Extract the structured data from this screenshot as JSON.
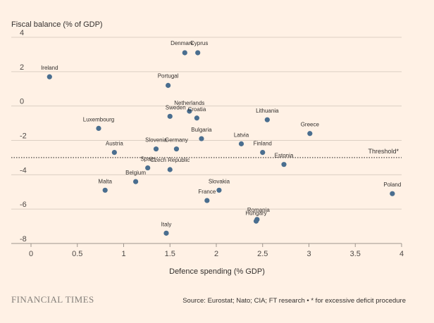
{
  "brand": "FINANCIAL TIMES",
  "source": "Source: Eurostat; Nato; CIA; FT research • * for excessive deficit procedure",
  "chart_data": {
    "type": "scatter",
    "title": "",
    "ylabel": "Fiscal balance (% of GDP)",
    "xlabel": "Defence spending (% GDP)",
    "xlim": [
      0,
      4
    ],
    "ylim": [
      -8,
      4
    ],
    "xticks": [
      0,
      0.5,
      1,
      1.5,
      2,
      2.5,
      3,
      3.5,
      4
    ],
    "yticks": [
      4,
      2,
      0,
      -2,
      -4,
      -6,
      -8
    ],
    "xtick_labels": [
      "0",
      "0.5",
      "1",
      "1.5",
      "2",
      "2.5",
      "3",
      "3.5",
      "4"
    ],
    "ytick_labels": [
      "4",
      "2",
      "0",
      "-2",
      "-4",
      "-6",
      "-8"
    ],
    "grid": true,
    "threshold": {
      "y": -3,
      "label": "Threshold*"
    },
    "points": [
      {
        "label": "Ireland",
        "x": 0.2,
        "y": 1.7
      },
      {
        "label": "Denmark",
        "x": 1.66,
        "y": 3.1
      },
      {
        "label": "Cyprus",
        "x": 1.8,
        "y": 3.1
      },
      {
        "label": "Portugal",
        "x": 1.48,
        "y": 1.2
      },
      {
        "label": "Netherlands",
        "x": 1.71,
        "y": -0.3
      },
      {
        "label": "Croatia",
        "x": 1.79,
        "y": -0.7
      },
      {
        "label": "Sweden",
        "x": 1.5,
        "y": -0.6
      },
      {
        "label": "Lithuania",
        "x": 2.55,
        "y": -0.8
      },
      {
        "label": "Luxembourg",
        "x": 0.73,
        "y": -1.3
      },
      {
        "label": "Greece",
        "x": 3.01,
        "y": -1.6
      },
      {
        "label": "Bulgaria",
        "x": 1.84,
        "y": -1.9
      },
      {
        "label": "Latvia",
        "x": 2.27,
        "y": -2.2
      },
      {
        "label": "Finland",
        "x": 2.5,
        "y": -2.7
      },
      {
        "label": "Austria",
        "x": 0.9,
        "y": -2.7
      },
      {
        "label": "Slovenia",
        "x": 1.35,
        "y": -2.5
      },
      {
        "label": "Germany",
        "x": 1.57,
        "y": -2.5
      },
      {
        "label": "Estonia",
        "x": 2.73,
        "y": -3.4
      },
      {
        "label": "Spain",
        "x": 1.26,
        "y": -3.6
      },
      {
        "label": "Czech Republic",
        "x": 1.5,
        "y": -3.7
      },
      {
        "label": "Belgium",
        "x": 1.13,
        "y": -4.4
      },
      {
        "label": "Malta",
        "x": 0.8,
        "y": -4.9
      },
      {
        "label": "Slovakia",
        "x": 2.03,
        "y": -4.9
      },
      {
        "label": "France",
        "x": 1.9,
        "y": -5.5
      },
      {
        "label": "Poland",
        "x": 3.9,
        "y": -5.1
      },
      {
        "label": "Romania",
        "x": 2.44,
        "y": -6.6
      },
      {
        "label": "Hungary",
        "x": 2.43,
        "y": -6.7
      },
      {
        "label": "Italy",
        "x": 1.46,
        "y": -7.4
      }
    ]
  }
}
